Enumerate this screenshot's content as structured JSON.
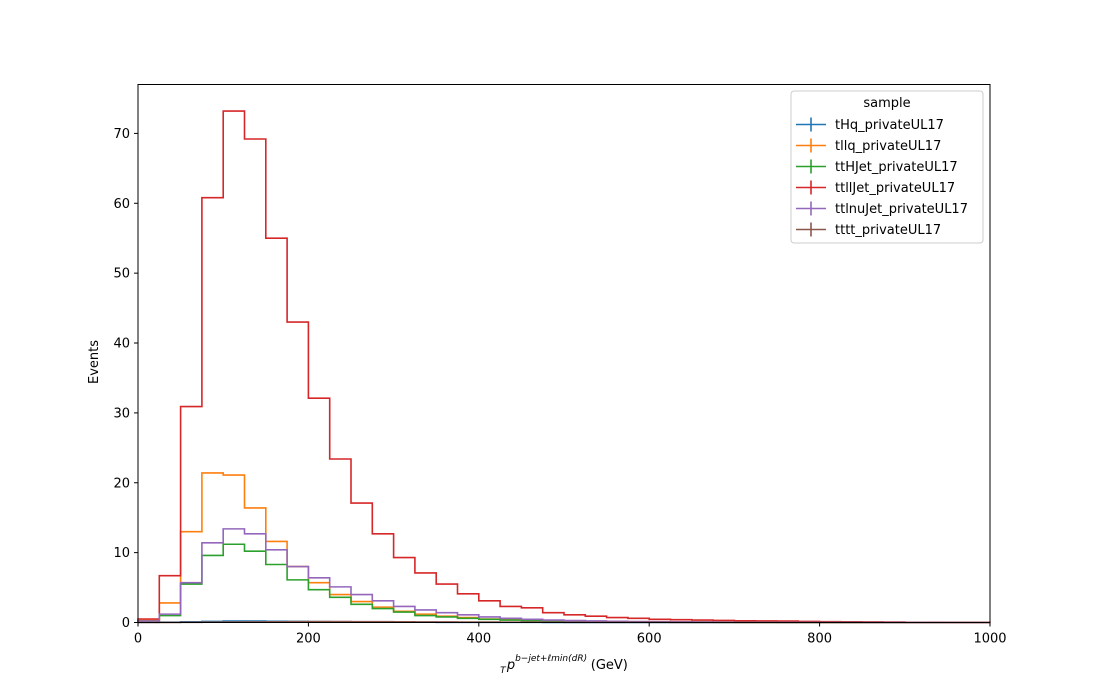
{
  "chart_data": {
    "type": "step-histogram",
    "ylabel": "Events",
    "xlabel": {
      "main": "p",
      "sub": "T",
      "sup": "b−jet+ℓmin(dR)",
      "unit": " (GeV)"
    },
    "xlim": [
      0,
      1000
    ],
    "ylim": [
      0,
      77
    ],
    "xticks": [
      0,
      200,
      400,
      600,
      800,
      1000
    ],
    "yticks": [
      0,
      10,
      20,
      30,
      40,
      50,
      60,
      70
    ],
    "grid": false,
    "legend": {
      "title": "sample",
      "placement": "top-right"
    },
    "bin_edges": [
      0,
      25,
      50,
      75,
      100,
      125,
      150,
      175,
      200,
      225,
      250,
      275,
      300,
      325,
      350,
      375,
      400,
      425,
      450,
      475,
      500,
      525,
      550,
      575,
      600,
      625,
      650,
      675,
      700,
      725,
      750,
      775,
      800,
      825,
      850,
      875,
      900,
      925,
      950,
      975,
      1000
    ],
    "series": [
      {
        "name": "tHq_privateUL17",
        "color": "#1f77b4",
        "values": [
          0.02,
          0.05,
          0.1,
          0.15,
          0.2,
          0.2,
          0.18,
          0.15,
          0.12,
          0.1,
          0.08,
          0.06,
          0.05,
          0.04,
          0.03,
          0.03,
          0.02,
          0.02,
          0.02,
          0.01,
          0.01,
          0.01,
          0.01,
          0.01,
          0,
          0,
          0,
          0,
          0,
          0,
          0,
          0,
          0,
          0,
          0,
          0,
          0,
          0,
          0,
          0
        ]
      },
      {
        "name": "tllq_privateUL17",
        "color": "#ff7f0e",
        "values": [
          0.3,
          2.8,
          13.0,
          21.4,
          21.1,
          16.4,
          11.6,
          8.0,
          5.7,
          4.0,
          3.0,
          2.2,
          1.6,
          1.2,
          0.9,
          0.7,
          0.5,
          0.4,
          0.3,
          0.25,
          0.2,
          0.15,
          0.12,
          0.1,
          0.08,
          0.06,
          0.05,
          0.04,
          0.03,
          0.02,
          0.02,
          0.02,
          0.01,
          0.01,
          0.01,
          0.01,
          0,
          0,
          0,
          0
        ]
      },
      {
        "name": "ttHJet_privateUL17",
        "color": "#2ca02c",
        "values": [
          0.2,
          1.0,
          5.5,
          9.6,
          11.2,
          10.2,
          8.3,
          6.1,
          4.7,
          3.6,
          2.6,
          2.0,
          1.5,
          1.0,
          0.8,
          0.6,
          0.45,
          0.35,
          0.28,
          0.22,
          0.17,
          0.13,
          0.1,
          0.08,
          0.06,
          0.05,
          0.04,
          0.03,
          0.02,
          0.02,
          0.01,
          0.01,
          0.01,
          0.01,
          0,
          0,
          0,
          0,
          0,
          0
        ]
      },
      {
        "name": "ttllJet_privateUL17",
        "color": "#d62728",
        "values": [
          0.5,
          6.7,
          30.9,
          60.8,
          73.2,
          69.2,
          55.0,
          43.0,
          32.1,
          23.4,
          17.1,
          12.7,
          9.3,
          7.1,
          5.5,
          4.1,
          3.1,
          2.3,
          2.1,
          1.4,
          1.1,
          0.9,
          0.7,
          0.6,
          0.45,
          0.4,
          0.35,
          0.3,
          0.25,
          0.22,
          0.2,
          0.15,
          0.12,
          0.1,
          0.08,
          0.06,
          0.02,
          0.02,
          0.01,
          0.01
        ]
      },
      {
        "name": "ttlnuJet_privateUL17",
        "color": "#9467bd",
        "values": [
          0.2,
          1.2,
          5.7,
          11.4,
          13.4,
          12.7,
          10.4,
          8.0,
          6.4,
          5.1,
          4.0,
          3.1,
          2.3,
          1.8,
          1.4,
          1.1,
          0.8,
          0.6,
          0.45,
          0.35,
          0.28,
          0.22,
          0.17,
          0.14,
          0.12,
          0.1,
          0.08,
          0.06,
          0.05,
          0.04,
          0.03,
          0.03,
          0.02,
          0.02,
          0.01,
          0.01,
          0.01,
          0,
          0,
          0
        ]
      },
      {
        "name": "tttt_privateUL17",
        "color": "#8c564b",
        "values": [
          0,
          0.01,
          0.02,
          0.04,
          0.06,
          0.08,
          0.1,
          0.12,
          0.13,
          0.13,
          0.12,
          0.11,
          0.1,
          0.09,
          0.08,
          0.07,
          0.06,
          0.05,
          0.04,
          0.04,
          0.03,
          0.03,
          0.02,
          0.02,
          0.02,
          0.01,
          0.01,
          0.01,
          0.01,
          0.01,
          0,
          0,
          0,
          0,
          0,
          0,
          0,
          0,
          0,
          0
        ]
      }
    ]
  }
}
